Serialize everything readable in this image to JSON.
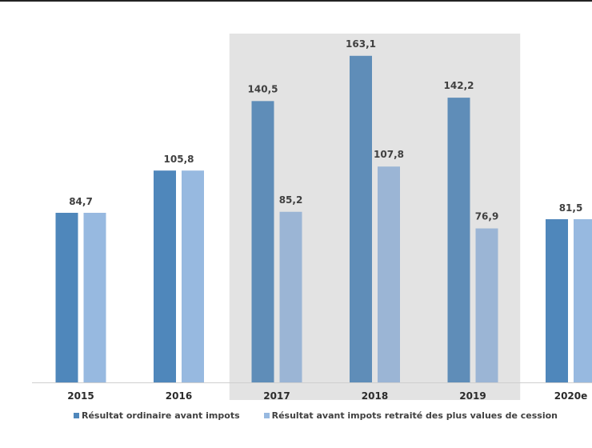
{
  "chart_data": {
    "type": "bar",
    "title": "",
    "xlabel": "",
    "ylabel": "",
    "categories": [
      "2015",
      "2016",
      "2017",
      "2018",
      "2019",
      "2020e"
    ],
    "series": [
      {
        "name": "Résultat ordinaire avant impots",
        "values": [
          84.7,
          105.8,
          140.5,
          163.1,
          142.2,
          81.5
        ],
        "labels": [
          "84,7",
          "105,8",
          "140,5",
          "163,1",
          "142,2",
          "81,5"
        ]
      },
      {
        "name": "Résultat avant impots retraité des plus values de cession",
        "values": [
          84.7,
          105.8,
          85.2,
          107.8,
          76.9,
          81.5
        ],
        "labels": [
          "",
          "",
          "85,2",
          "107,8",
          "76,9",
          ""
        ]
      }
    ],
    "highlighted_categories": [
      "2017",
      "2018",
      "2019"
    ],
    "ylim": [
      0,
      175
    ],
    "grid": false,
    "legend_position": "bottom",
    "colors": {
      "series1": "#4f87bb",
      "series1_highlight": "#5f8db8",
      "series2": "#97b9e0",
      "series2_highlight": "#9bb5d5",
      "highlight_band": "#e3e3e3",
      "axis": "#cfcfcf"
    }
  }
}
